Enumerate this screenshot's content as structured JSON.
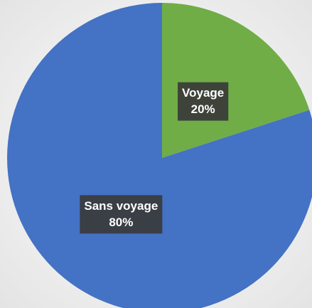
{
  "chart_data": {
    "type": "pie",
    "categories": [
      "Voyage",
      "Sans voyage"
    ],
    "values": [
      20,
      80
    ],
    "value_labels": [
      "20%",
      "80%"
    ],
    "colors": [
      "#70ad47",
      "#4472c4"
    ]
  }
}
